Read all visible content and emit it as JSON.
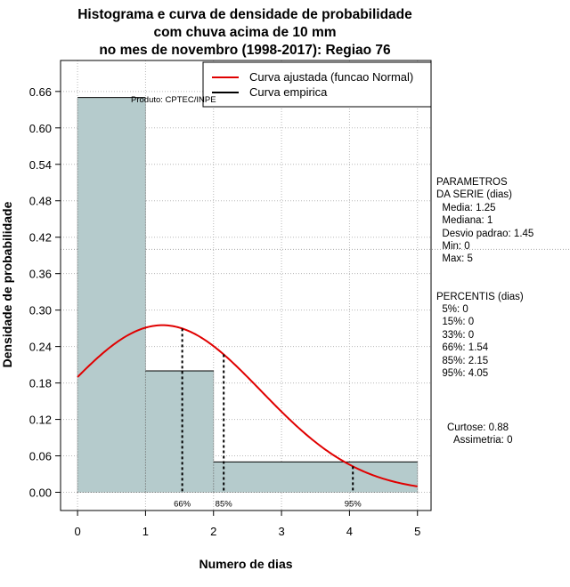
{
  "chart_data": {
    "type": "bar",
    "title_lines": [
      "Histograma e curva de densidade de probabilidade",
      "com chuva acima de 10 mm",
      "no mes de novembro (1998-2017): Regiao 76"
    ],
    "xlabel": "Numero de dias",
    "ylabel": "Densidade de probabilidade",
    "xlim": [
      -0.25,
      5.2
    ],
    "ylim": [
      -0.03,
      0.711
    ],
    "x_ticks": [
      0,
      1,
      2,
      3,
      4,
      5
    ],
    "y_ticks": [
      0.0,
      0.06,
      0.12,
      0.18,
      0.24,
      0.3,
      0.36,
      0.42,
      0.48,
      0.54,
      0.6,
      0.66
    ],
    "y_tick_labels": [
      "0.00",
      "0.06",
      "0.12",
      "0.18",
      "0.24",
      "0.30",
      "0.36",
      "0.42",
      "0.48",
      "0.54",
      "0.60",
      "0.66"
    ],
    "bins": [
      {
        "x0": 0,
        "x1": 1,
        "value": 0.65
      },
      {
        "x0": 1,
        "x1": 2,
        "value": 0.2
      },
      {
        "x0": 2,
        "x1": 5,
        "value": 0.05
      }
    ],
    "normal_fit": {
      "name": "Curva ajustada (funcao Normal)",
      "mean": 1.25,
      "sd": 1.45,
      "color": "#e00000"
    },
    "empirical_label": "Curva empirica",
    "hline": 0.4,
    "percentile_markers": [
      {
        "x": 1.54,
        "label": "66%"
      },
      {
        "x": 2.15,
        "label": "85%"
      },
      {
        "x": 4.05,
        "label": "95%"
      }
    ],
    "credit": "Produto: CPTEC/INPE",
    "bar_color": "#b5cbcc"
  },
  "side_panel": {
    "parametros_lines": [
      "PARAMETROS",
      "DA SERIE (dias)",
      "  Media: 1.25",
      "  Mediana: 1",
      "  Desvio padrao: 1.45",
      "  Min: 0",
      "  Max: 5"
    ],
    "percentis_lines": [
      "PERCENTIS (dias)",
      "  5%: 0",
      "  15%: 0",
      "  33%: 0",
      "  66%: 1.54",
      "  85%: 2.15",
      "  95%: 4.05"
    ],
    "curtose": "Curtose: 0.88",
    "assimetria": "Assimetria: 0"
  }
}
